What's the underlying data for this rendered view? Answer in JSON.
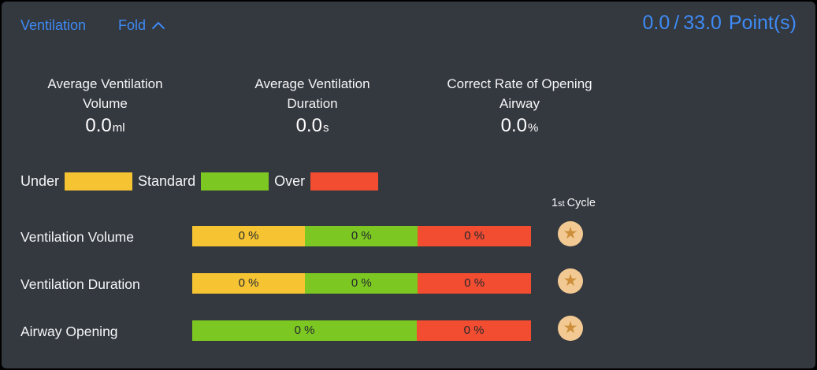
{
  "colors": {
    "accent_blue": "#3e8bf5",
    "under": "#f6c433",
    "standard": "#7cc722",
    "over": "#f24c31",
    "star_badge_bg": "#f2c992",
    "star_glyph": "#cd8f3c",
    "panel_bg": "#34383f",
    "bar_text": "#24292e"
  },
  "header": {
    "title": "Ventilation",
    "fold_label": "Fold",
    "score": {
      "achieved": "0.0",
      "slash": "/",
      "total": "33.0",
      "unit": "Point(s)"
    }
  },
  "stats": [
    {
      "line1": "Average Ventilation",
      "line2": "Volume",
      "value": "0.0",
      "unit": "ml"
    },
    {
      "line1": "Average Ventilation",
      "line2": "Duration",
      "value": "0.0",
      "unit": "s"
    },
    {
      "line1": "Correct Rate of Opening",
      "line2": "Airway",
      "value": "0.0",
      "unit": "%"
    }
  ],
  "legend": [
    {
      "label": "Under",
      "color": "#f6c433"
    },
    {
      "label": "Standard",
      "color": "#7cc722"
    },
    {
      "label": "Over",
      "color": "#f24c31"
    }
  ],
  "cycle_header": {
    "number": "1",
    "ordinal": "st",
    "word": "Cycle"
  },
  "rows": [
    {
      "label": "Ventilation Volume",
      "segments": [
        {
          "text": "0 %",
          "percent": 33.3,
          "color": "#f6c433",
          "legend": "Under"
        },
        {
          "text": "0 %",
          "percent": 33.3,
          "color": "#7cc722",
          "legend": "Standard"
        },
        {
          "text": "0 %",
          "percent": 33.4,
          "color": "#f24c31",
          "legend": "Over"
        }
      ]
    },
    {
      "label": "Ventilation Duration",
      "segments": [
        {
          "text": "0 %",
          "percent": 33.3,
          "color": "#f6c433",
          "legend": "Under"
        },
        {
          "text": "0 %",
          "percent": 33.3,
          "color": "#7cc722",
          "legend": "Standard"
        },
        {
          "text": "0 %",
          "percent": 33.4,
          "color": "#f24c31",
          "legend": "Over"
        }
      ]
    },
    {
      "label": "Airway Opening",
      "segments": [
        {
          "text": "0 %",
          "percent": 66.3,
          "color": "#7cc722",
          "legend": "Standard"
        },
        {
          "text": "0 %",
          "percent": 33.7,
          "color": "#f24c31",
          "legend": "Over"
        }
      ]
    }
  ]
}
